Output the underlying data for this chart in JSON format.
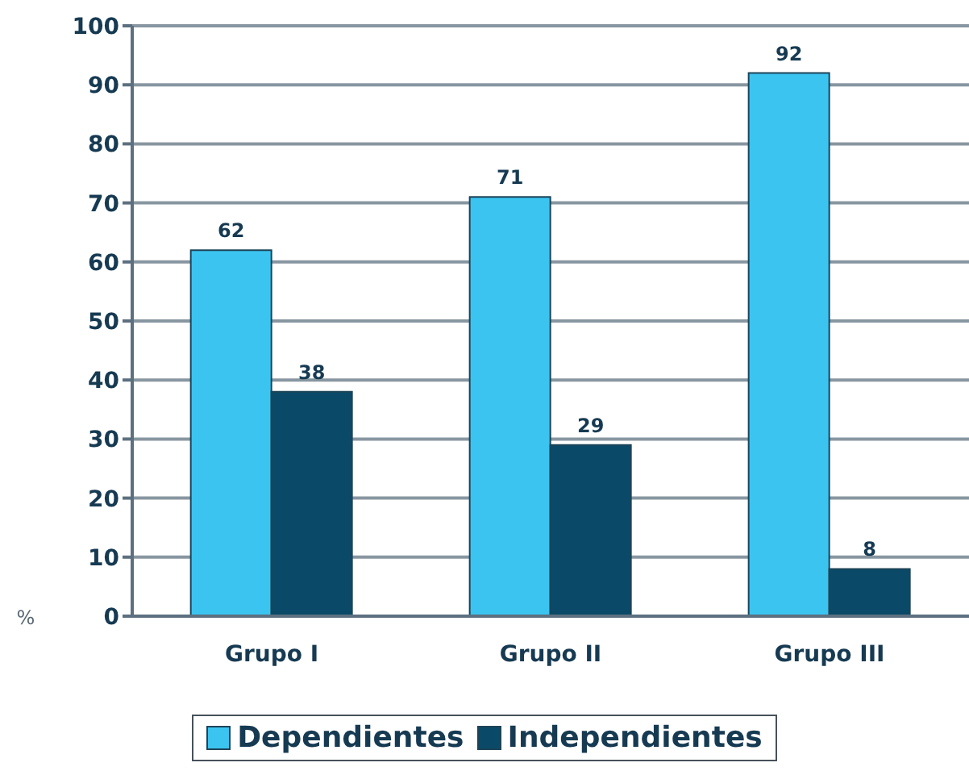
{
  "chart_data": {
    "type": "bar",
    "ylabel": "%",
    "categories": [
      "Grupo I",
      "Grupo II",
      "Grupo III"
    ],
    "series": [
      {
        "name": "Dependientes",
        "color": "#3cc4f0",
        "values": [
          62,
          71,
          92
        ]
      },
      {
        "name": "Independientes",
        "color": "#0a4a68",
        "values": [
          38,
          29,
          8
        ]
      }
    ],
    "ylim": [
      0,
      100
    ],
    "yticks": [
      0,
      10,
      20,
      30,
      40,
      50,
      60,
      70,
      80,
      90,
      100
    ],
    "grid": "y",
    "legend": "bottom",
    "data_labels": true
  }
}
